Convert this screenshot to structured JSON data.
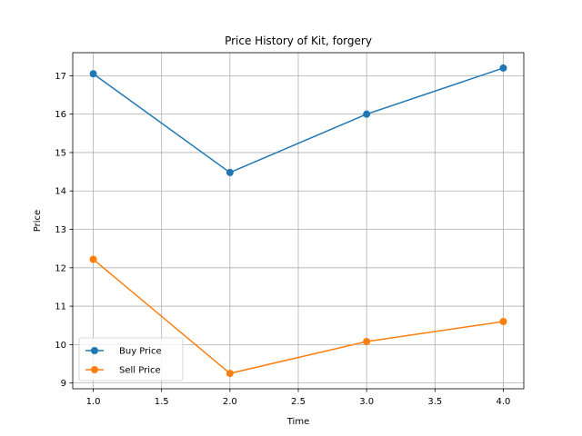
{
  "chart_data": {
    "type": "line",
    "title": "Price History of Kit, forgery",
    "xlabel": "Time",
    "ylabel": "Price",
    "xlim": [
      0.85,
      4.15
    ],
    "ylim": [
      8.85,
      17.6
    ],
    "x_ticks": [
      1.0,
      1.5,
      2.0,
      2.5,
      3.0,
      3.5,
      4.0
    ],
    "y_ticks": [
      9,
      10,
      11,
      12,
      13,
      14,
      15,
      16,
      17
    ],
    "grid": true,
    "legend_position": "lower-left",
    "x": [
      1.0,
      2.0,
      3.0,
      4.0
    ],
    "series": [
      {
        "name": "Buy Price",
        "color": "#1f77b4",
        "marker": "circle",
        "values": [
          17.05,
          14.48,
          16.0,
          17.2
        ]
      },
      {
        "name": "Sell Price",
        "color": "#ff7f0e",
        "marker": "circle",
        "values": [
          12.22,
          9.25,
          10.08,
          10.6
        ]
      }
    ]
  }
}
